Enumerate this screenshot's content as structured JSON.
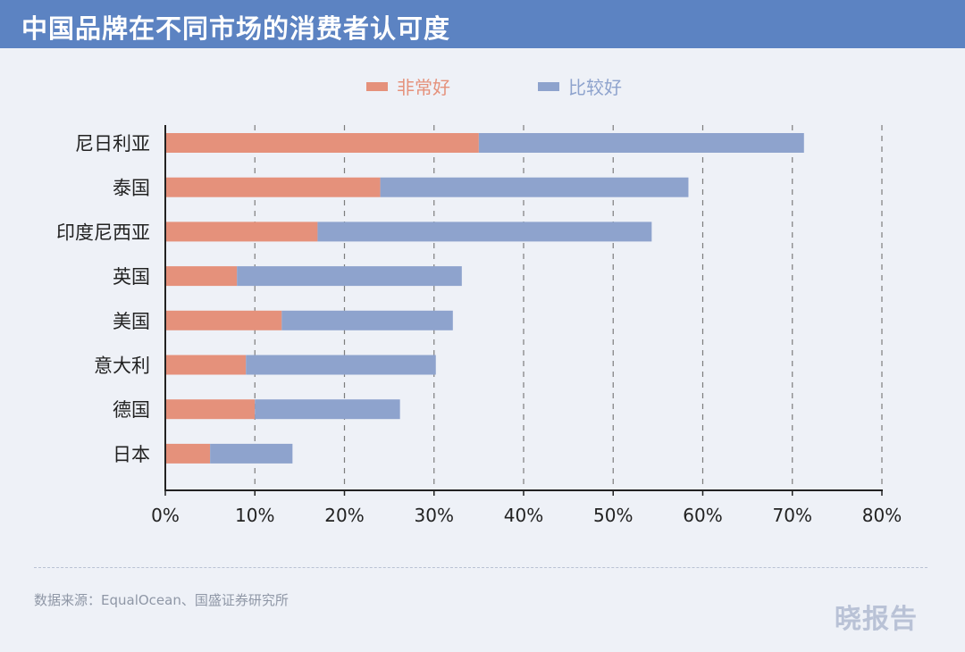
{
  "chart_data": {
    "type": "bar",
    "orientation": "horizontal",
    "stacked": true,
    "title": "中国品牌在不同市场的消费者认可度",
    "categories": [
      "尼日利亚",
      "泰国",
      "印度尼西亚",
      "英国",
      "美国",
      "意大利",
      "德国",
      "日本"
    ],
    "series": [
      {
        "name": "非常好",
        "color": "#e5917b",
        "values": [
          35,
          24,
          17,
          8,
          13,
          9,
          10,
          5
        ]
      },
      {
        "name": "比较好",
        "color": "#8ea3cd",
        "values": [
          36.3,
          34.4,
          37.3,
          25.1,
          19.1,
          21.2,
          16.2,
          9.2
        ]
      }
    ],
    "xlim": [
      0,
      80
    ],
    "x_ticks": [
      0,
      10,
      20,
      30,
      40,
      50,
      60,
      70,
      80
    ],
    "x_tick_labels": [
      "0%",
      "10%",
      "20%",
      "30%",
      "40%",
      "50%",
      "60%",
      "70%",
      "80%"
    ],
    "xlabel": "",
    "ylabel": "",
    "grid": "vertical-dashed",
    "legend_position": "top-center"
  },
  "source": "数据来源：EqualOcean、国盛证券研究所",
  "watermark": "晓报告"
}
